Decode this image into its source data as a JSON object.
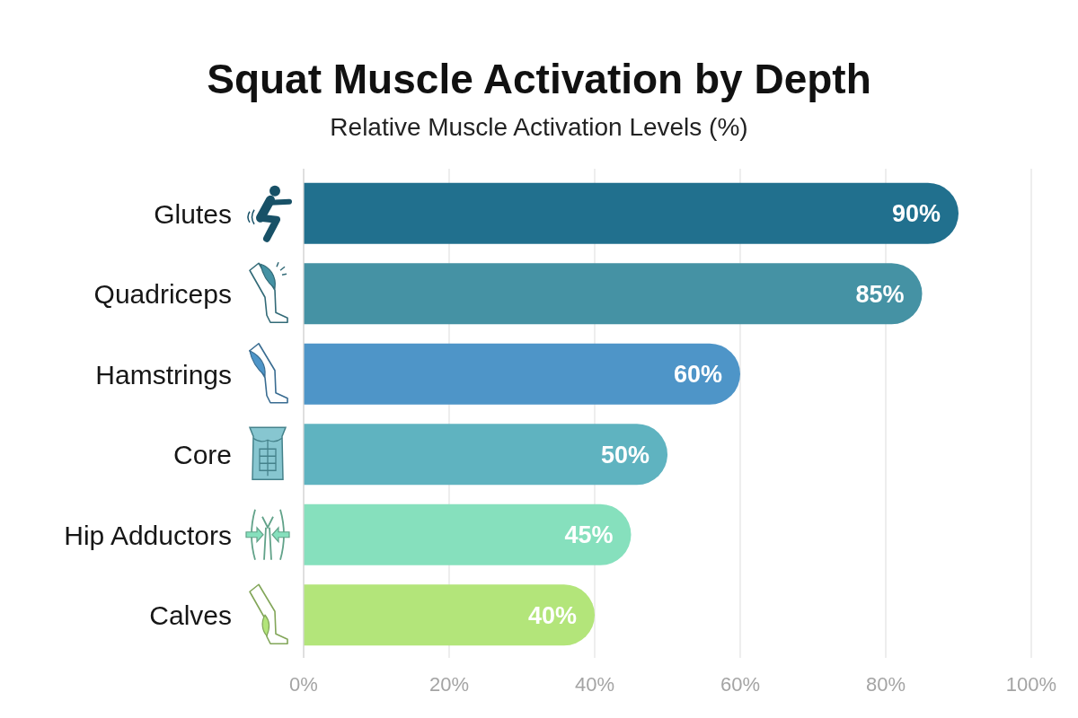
{
  "chart_data": {
    "type": "bar",
    "orientation": "horizontal",
    "title": "Squat Muscle Activation by Depth",
    "subtitle": "Relative Muscle Activation Levels (%)",
    "categories": [
      "Glutes",
      "Quadriceps",
      "Hamstrings",
      "Core",
      "Hip Adductors",
      "Calves"
    ],
    "values": [
      90,
      85,
      60,
      50,
      45,
      40
    ],
    "colors": [
      "#21708e",
      "#4592a4",
      "#4e95c8",
      "#5fb3c0",
      "#86e0bd",
      "#b3e57a"
    ],
    "value_labels": [
      "90%",
      "85%",
      "60%",
      "50%",
      "45%",
      "40%"
    ],
    "xlim": [
      0,
      100
    ],
    "xticks": [
      {
        "value": 0,
        "label": "0%"
      },
      {
        "value": 20,
        "label": "20%"
      },
      {
        "value": 40,
        "label": "40%"
      },
      {
        "value": 60,
        "label": "60%"
      },
      {
        "value": 80,
        "label": "80%"
      },
      {
        "value": 100,
        "label": "100%"
      }
    ],
    "grid": "x"
  }
}
